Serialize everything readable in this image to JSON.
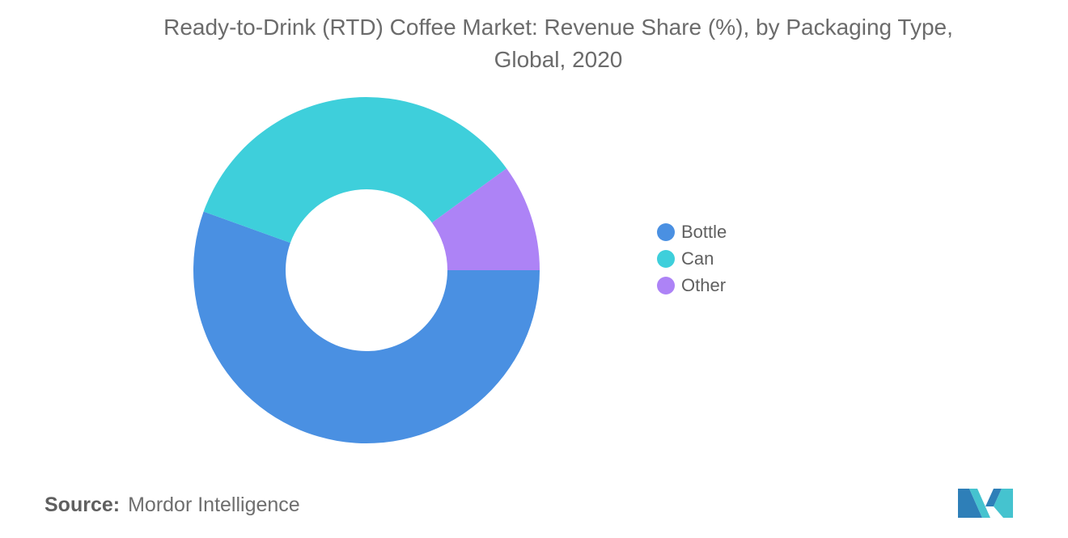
{
  "title": {
    "line1": "Ready-to-Drink (RTD) Coffee Market: Revenue Share (%), by Packaging Type,",
    "line2": "Global, 2020"
  },
  "source": {
    "label": "Source:",
    "value": "Mordor Intelligence"
  },
  "logo": {
    "name": "mordor-intelligence-logo"
  },
  "chart_data": {
    "type": "pie",
    "donut": true,
    "title": "Ready-to-Drink (RTD) Coffee Market: Revenue Share (%), by Packaging Type, Global, 2020",
    "legend_position": "right",
    "slices": [
      {
        "label": "Bottle",
        "value": 55.5,
        "color": "#4a90e2"
      },
      {
        "label": "Can",
        "value": 34.5,
        "color": "#3ecfdb"
      },
      {
        "label": "Other",
        "value": 10.0,
        "color": "#ad83f6"
      }
    ]
  }
}
